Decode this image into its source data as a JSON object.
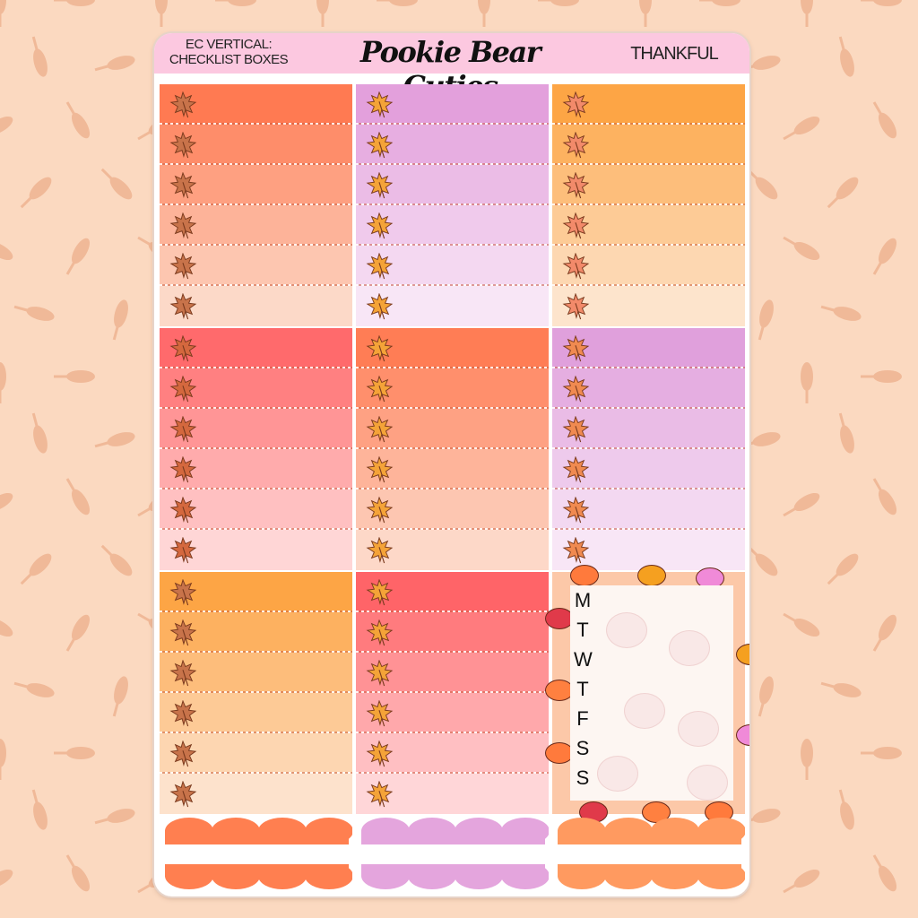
{
  "header": {
    "left_line1": "EC VERTICAL:",
    "left_line2": "CHECKLIST BOXES",
    "brand": "Pookie Bear Cuties",
    "theme": "THANKFUL"
  },
  "colors": {
    "background": "#fbd9c0",
    "pattern": "#f0b998",
    "header": "#fcc8e0"
  },
  "icons": {
    "row_icon": "maple-leaf-icon"
  },
  "blocks": [
    {
      "from": "#ff7a52",
      "to": "#fcd9c8",
      "leaf": "#c8734a"
    },
    {
      "from": "#e3a0dc",
      "to": "#f8e6f6",
      "leaf": "#f4a338"
    },
    {
      "from": "#fda545",
      "to": "#fde4cc",
      "leaf": "#f28a6a"
    },
    {
      "from": "#ff6a6c",
      "to": "#ffd6d6",
      "leaf": "#d4683e"
    },
    {
      "from": "#ff7d55",
      "to": "#fdd8c8",
      "leaf": "#f4a338"
    },
    {
      "from": "#e0a0dc",
      "to": "#f8e6f6",
      "leaf": "#f08a50"
    },
    {
      "from": "#fda545",
      "to": "#fde2cc",
      "leaf": "#c8734a"
    },
    {
      "from": "#ff6468",
      "to": "#ffd6d8",
      "leaf": "#f4a338"
    }
  ],
  "weekly": {
    "days": [
      "M",
      "T",
      "W",
      "T",
      "F",
      "S",
      "S"
    ]
  },
  "strips": [
    "#ff7f50",
    "#e4a5dd",
    "#ff9a60"
  ]
}
